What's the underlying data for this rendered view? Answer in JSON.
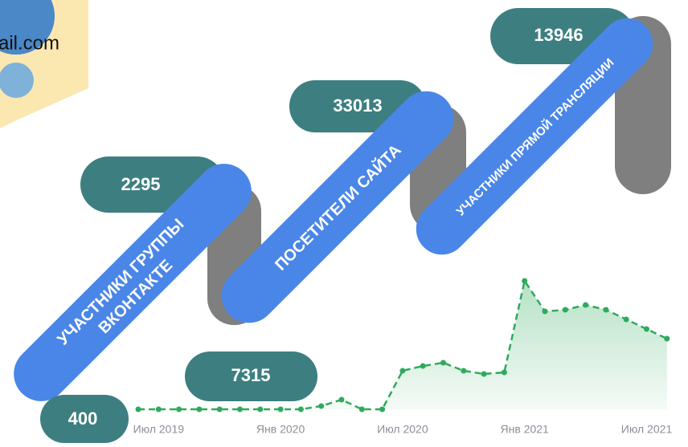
{
  "email_fragment": "ail.com",
  "infographic": [
    {
      "label": [
        "УЧАСТНИКИ ГРУППЫ",
        "ВКОНТАКТЕ"
      ],
      "value": "2295",
      "start_value": "400"
    },
    {
      "label": [
        "ПОСЕТИТЕЛИ САЙТА"
      ],
      "value": "33013",
      "start_value": "7315"
    },
    {
      "label": [
        "УЧАСТНИКИ ПРЯМОЙ ТРАНСЛЯЦИИ"
      ],
      "value": "13946"
    }
  ],
  "chart_data": {
    "type": "area",
    "color": "#2eaa5c",
    "categories": [
      null,
      "Июл 2019",
      null,
      null,
      null,
      null,
      null,
      "Янв 2020",
      null,
      null,
      null,
      null,
      null,
      "Июл 2020",
      null,
      null,
      null,
      null,
      null,
      "Янв 2021",
      null,
      null,
      null,
      null,
      null,
      "Июл 2021",
      null
    ],
    "values": [
      0,
      0,
      0,
      0,
      0,
      0,
      0,
      0,
      0,
      2,
      6,
      0,
      0,
      24,
      27,
      29,
      24,
      22,
      23,
      80,
      61,
      62,
      65,
      62,
      56,
      50,
      44
    ],
    "ylim": [
      0,
      120
    ]
  }
}
